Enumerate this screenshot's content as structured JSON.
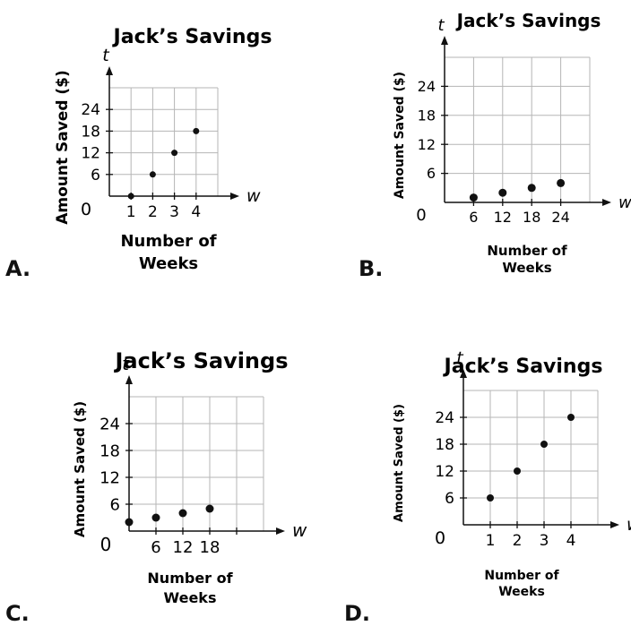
{
  "chart_data": [
    {
      "option": "A.",
      "type": "scatter",
      "title": "Jack’s Savings",
      "ylabel": "Amount Saved ($)",
      "xlabel": "Number of Weeks",
      "xlabel_lines": [
        "Number of",
        "Weeks"
      ],
      "x_var": "w",
      "y_var": "t",
      "origin_label": "0",
      "x_ticks": [
        1,
        2,
        3,
        4
      ],
      "y_ticks": [
        6,
        12,
        18,
        24
      ],
      "xlim": [
        0,
        5
      ],
      "ylim": [
        0,
        30
      ],
      "grid": true,
      "points": [
        [
          1,
          0
        ],
        [
          2,
          6
        ],
        [
          3,
          12
        ],
        [
          4,
          18
        ]
      ]
    },
    {
      "option": "B.",
      "type": "scatter",
      "title": "Jack’s Savings",
      "ylabel": "Amount Saved ($)",
      "xlabel": "Number of Weeks",
      "xlabel_lines": [
        "Number of",
        "Weeks"
      ],
      "x_var": "w",
      "y_var": "t",
      "origin_label": "0",
      "x_ticks": [
        6,
        12,
        18,
        24
      ],
      "y_ticks": [
        6,
        12,
        18,
        24
      ],
      "xlim": [
        0,
        30
      ],
      "ylim": [
        0,
        30
      ],
      "grid": true,
      "points": [
        [
          6,
          1
        ],
        [
          12,
          2
        ],
        [
          18,
          3
        ],
        [
          24,
          4
        ]
      ]
    },
    {
      "option": "C.",
      "type": "scatter",
      "title": "Jack’s Savings",
      "ylabel": "Amount Saved ($)",
      "xlabel": "Number of Weeks",
      "xlabel_lines": [
        "Number of",
        "Weeks"
      ],
      "x_var": "w",
      "y_var": "t",
      "origin_label": "0",
      "x_ticks": [
        6,
        12,
        18,
        24
      ],
      "x_tick_labels": [
        "6",
        "12",
        "18",
        ""
      ],
      "y_ticks": [
        6,
        12,
        18,
        24
      ],
      "xlim": [
        0,
        30
      ],
      "ylim": [
        0,
        30
      ],
      "grid": true,
      "points": [
        [
          0,
          2
        ],
        [
          6,
          3
        ],
        [
          12,
          4
        ],
        [
          18,
          5
        ]
      ]
    },
    {
      "option": "D.",
      "type": "scatter",
      "title": "Jack’s Savings",
      "ylabel": "Amount Saved ($)",
      "xlabel": "Number of Weeks",
      "xlabel_lines": [
        "Number of",
        "Weeks"
      ],
      "x_var": "w",
      "y_var": "t",
      "origin_label": "0",
      "x_ticks": [
        1,
        2,
        3,
        4
      ],
      "y_ticks": [
        6,
        12,
        18,
        24
      ],
      "xlim": [
        0,
        5
      ],
      "ylim": [
        0,
        30
      ],
      "grid": true,
      "points": [
        [
          1,
          6
        ],
        [
          2,
          12
        ],
        [
          3,
          18
        ],
        [
          4,
          24
        ]
      ]
    }
  ]
}
